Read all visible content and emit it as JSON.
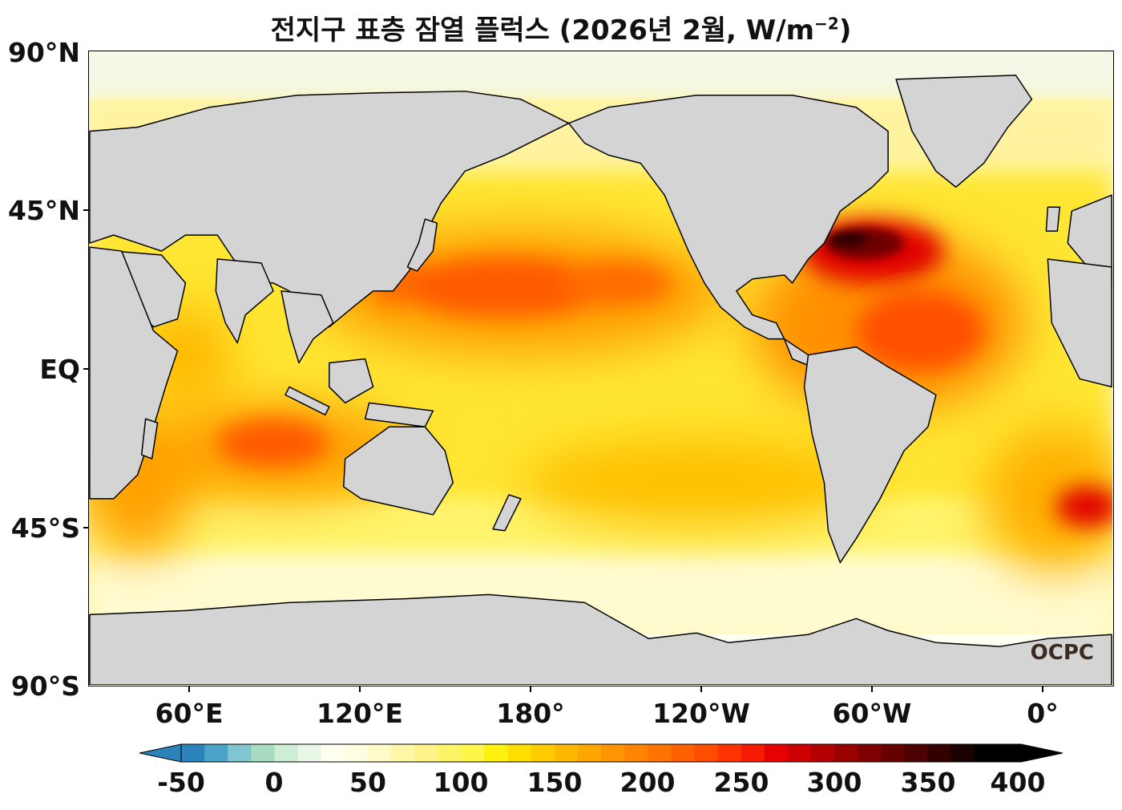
{
  "title": "전지구 표층 잠열 플럭스 (2026년 2월, W/m",
  "title_exp": "−2",
  "title_close": ")",
  "lat_labels": [
    "90°N",
    "45°N",
    "EQ",
    "45°S",
    "90°S"
  ],
  "lon_labels": [
    "60°E",
    "120°E",
    "180°",
    "120°W",
    "60°W",
    "0°"
  ],
  "colorbar": {
    "min": -50,
    "max": 400,
    "step": 12.5,
    "tick_labels": [
      "-50",
      "0",
      "50",
      "100",
      "150",
      "200",
      "250",
      "300",
      "350",
      "400"
    ],
    "extend": "both",
    "colors": [
      "#2b83ba",
      "#4aa3c8",
      "#7fc6cf",
      "#a8dcc0",
      "#cdeed5",
      "#e9f7e6",
      "#fffff0",
      "#fffde0",
      "#fffbc8",
      "#fff7a8",
      "#fff38a",
      "#fff36a",
      "#fff64a",
      "#fff10f",
      "#ffdf00",
      "#ffcc00",
      "#ffb800",
      "#ffa600",
      "#ff9500",
      "#ff8500",
      "#ff7300",
      "#ff6100",
      "#ff4d00",
      "#ff3300",
      "#f51a00",
      "#e60000",
      "#cc0000",
      "#b30000",
      "#990000",
      "#800000",
      "#660000",
      "#4d0000",
      "#330000",
      "#1a0000",
      "#000000",
      "#000000"
    ]
  },
  "map": {
    "land_color": "#d4d4d4",
    "ocean_base": "#fde95a",
    "hotspots": [
      "#ff9a00",
      "#ff5a00",
      "#d40000",
      "#3b0000"
    ]
  },
  "logo": "OCPC"
}
